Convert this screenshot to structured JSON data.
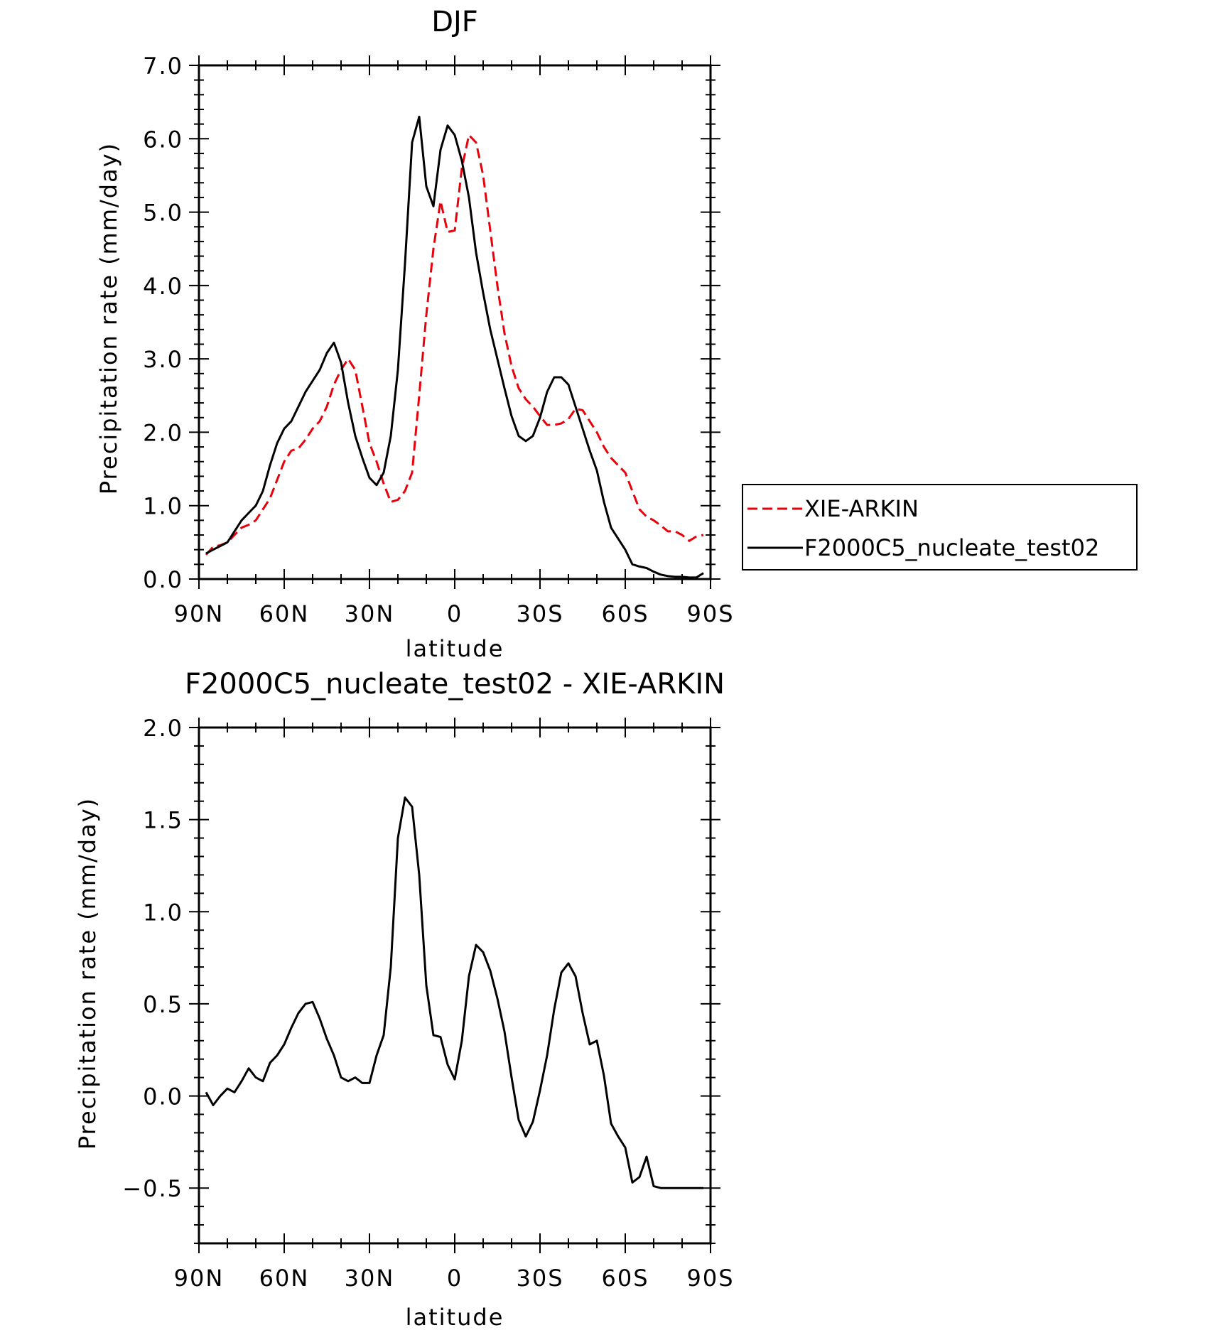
{
  "chart_data": [
    {
      "type": "line",
      "title": "DJF",
      "xlabel": "latitude",
      "ylabel": "Precipitation rate (mm/day)",
      "xlim": [
        90,
        -90
      ],
      "ylim": [
        0,
        7
      ],
      "xticks": [
        {
          "value": 90,
          "label": "90N"
        },
        {
          "value": 60,
          "label": "60N"
        },
        {
          "value": 30,
          "label": "30N"
        },
        {
          "value": 0,
          "label": "0"
        },
        {
          "value": -30,
          "label": "30S"
        },
        {
          "value": -60,
          "label": "60S"
        },
        {
          "value": -90,
          "label": "90S"
        }
      ],
      "yticks": [
        {
          "value": 0,
          "label": "0.0"
        },
        {
          "value": 1,
          "label": "1.0"
        },
        {
          "value": 2,
          "label": "2.0"
        },
        {
          "value": 3,
          "label": "3.0"
        },
        {
          "value": 4,
          "label": "4.0"
        },
        {
          "value": 5,
          "label": "5.0"
        },
        {
          "value": 6,
          "label": "6.0"
        },
        {
          "value": 7,
          "label": "7.0"
        }
      ],
      "legend_position": "right",
      "series": [
        {
          "name": "XIE-ARKIN",
          "color": "#e8000b",
          "dash": "dashed",
          "x": [
            87.5,
            85,
            82.5,
            80,
            77.5,
            75,
            72.5,
            70,
            67.5,
            65,
            62.5,
            60,
            57.5,
            55,
            52.5,
            50,
            47.5,
            45,
            42.5,
            40,
            37.5,
            35,
            32.5,
            30,
            27.5,
            25,
            22.5,
            20,
            17.5,
            15,
            12.5,
            10,
            7.5,
            5,
            2.5,
            0,
            -2.5,
            -5,
            -7.5,
            -10,
            -12.5,
            -15,
            -17.5,
            -20,
            -22.5,
            -25,
            -27.5,
            -30,
            -32.5,
            -35,
            -37.5,
            -40,
            -42.5,
            -45,
            -47.5,
            -50,
            -52.5,
            -55,
            -57.5,
            -60,
            -62.5,
            -65,
            -67.5,
            -70,
            -72.5,
            -75,
            -77.5,
            -80,
            -82.5,
            -85,
            -87.5
          ],
          "values": [
            0.33,
            0.44,
            0.46,
            0.5,
            0.6,
            0.7,
            0.74,
            0.8,
            0.95,
            1.1,
            1.35,
            1.6,
            1.75,
            1.78,
            1.9,
            2.05,
            2.15,
            2.35,
            2.65,
            2.85,
            3.0,
            2.85,
            2.35,
            1.85,
            1.6,
            1.3,
            1.05,
            1.08,
            1.2,
            1.45,
            2.5,
            3.6,
            4.5,
            5.15,
            4.73,
            4.75,
            5.6,
            6.05,
            5.95,
            5.5,
            4.75,
            4.0,
            3.35,
            2.9,
            2.6,
            2.45,
            2.35,
            2.22,
            2.1,
            2.1,
            2.12,
            2.18,
            2.32,
            2.3,
            2.15,
            2.0,
            1.8,
            1.65,
            1.55,
            1.45,
            1.2,
            0.95,
            0.85,
            0.8,
            0.73,
            0.65,
            0.65,
            0.6,
            0.52,
            0.58,
            0.6
          ]
        },
        {
          "name": "F2000C5_nucleate_test02",
          "color": "#000000",
          "dash": "solid",
          "x": [
            87.5,
            85,
            82.5,
            80,
            77.5,
            75,
            72.5,
            70,
            67.5,
            65,
            62.5,
            60,
            57.5,
            55,
            52.5,
            50,
            47.5,
            45,
            42.5,
            40,
            37.5,
            35,
            32.5,
            30,
            27.5,
            25,
            22.5,
            20,
            17.5,
            15,
            12.5,
            10,
            7.5,
            5,
            2.5,
            0,
            -2.5,
            -5,
            -7.5,
            -10,
            -12.5,
            -15,
            -17.5,
            -20,
            -22.5,
            -25,
            -27.5,
            -30,
            -32.5,
            -35,
            -37.5,
            -40,
            -42.5,
            -45,
            -47.5,
            -50,
            -52.5,
            -55,
            -57.5,
            -60,
            -62.5,
            -65,
            -67.5,
            -70,
            -72.5,
            -75,
            -77.5,
            -80,
            -82.5,
            -85,
            -87.5
          ],
          "values": [
            0.35,
            0.4,
            0.45,
            0.5,
            0.65,
            0.8,
            0.9,
            1.0,
            1.2,
            1.55,
            1.85,
            2.05,
            2.15,
            2.35,
            2.55,
            2.7,
            2.85,
            3.08,
            3.22,
            2.95,
            2.4,
            1.95,
            1.65,
            1.38,
            1.28,
            1.45,
            1.95,
            2.85,
            4.3,
            5.95,
            6.3,
            5.35,
            5.08,
            5.85,
            6.18,
            6.05,
            5.7,
            5.2,
            4.45,
            3.9,
            3.4,
            3.0,
            2.6,
            2.22,
            1.95,
            1.88,
            1.95,
            2.2,
            2.55,
            2.75,
            2.75,
            2.65,
            2.35,
            2.05,
            1.75,
            1.48,
            1.05,
            0.7,
            0.55,
            0.4,
            0.2,
            0.17,
            0.15,
            0.1,
            0.06,
            0.04,
            0.03,
            0.03,
            0.02,
            0.02,
            0.08
          ]
        }
      ]
    },
    {
      "type": "line",
      "title": "F2000C5_nucleate_test02 - XIE-ARKIN",
      "xlabel": "latitude",
      "ylabel": "Precipitation rate (mm/day)",
      "xlim": [
        90,
        -90
      ],
      "ylim": [
        -0.8,
        2.0
      ],
      "xticks": [
        {
          "value": 90,
          "label": "90N"
        },
        {
          "value": 60,
          "label": "60N"
        },
        {
          "value": 30,
          "label": "30N"
        },
        {
          "value": 0,
          "label": "0"
        },
        {
          "value": -30,
          "label": "30S"
        },
        {
          "value": -60,
          "label": "60S"
        },
        {
          "value": -90,
          "label": "90S"
        }
      ],
      "yticks": [
        {
          "value": -0.5,
          "label": "−0.5"
        },
        {
          "value": 0,
          "label": "0.0"
        },
        {
          "value": 0.5,
          "label": "0.5"
        },
        {
          "value": 1.0,
          "label": "1.0"
        },
        {
          "value": 1.5,
          "label": "1.5"
        },
        {
          "value": 2.0,
          "label": "2.0"
        }
      ],
      "series": [
        {
          "color": "#000000",
          "dash": "solid",
          "x": [
            87.5,
            85,
            82.5,
            80,
            77.5,
            75,
            72.5,
            70,
            67.5,
            65,
            62.5,
            60,
            57.5,
            55,
            52.5,
            50,
            47.5,
            45,
            42.5,
            40,
            37.5,
            35,
            32.5,
            30,
            27.5,
            25,
            22.5,
            20,
            17.5,
            15,
            12.5,
            10,
            7.5,
            5,
            2.5,
            0,
            -2.5,
            -5,
            -7.5,
            -10,
            -12.5,
            -15,
            -17.5,
            -20,
            -22.5,
            -25,
            -27.5,
            -30,
            -32.5,
            -35,
            -37.5,
            -40,
            -42.5,
            -45,
            -47.5,
            -50,
            -52.5,
            -55,
            -57.5,
            -60,
            -62.5,
            -65,
            -67.5,
            -70,
            -72.5,
            -75,
            -77.5,
            -80,
            -82.5,
            -85,
            -87.5
          ],
          "values": [
            0.02,
            -0.05,
            0.0,
            0.04,
            0.02,
            0.08,
            0.15,
            0.1,
            0.08,
            0.18,
            0.22,
            0.28,
            0.37,
            0.45,
            0.5,
            0.51,
            0.42,
            0.31,
            0.22,
            0.1,
            0.08,
            0.1,
            0.07,
            0.07,
            0.22,
            0.33,
            0.7,
            1.4,
            1.62,
            1.57,
            1.2,
            0.6,
            0.33,
            0.32,
            0.17,
            0.09,
            0.3,
            0.65,
            0.82,
            0.78,
            0.68,
            0.53,
            0.35,
            0.1,
            -0.13,
            -0.22,
            -0.14,
            0.03,
            0.22,
            0.47,
            0.67,
            0.72,
            0.65,
            0.45,
            0.28,
            0.3,
            0.11,
            -0.15,
            -0.22,
            -0.28,
            -0.47,
            -0.44,
            -0.33,
            -0.49,
            -0.5,
            -0.5,
            -0.5,
            -0.5,
            -0.5,
            -0.5,
            -0.5
          ]
        }
      ]
    }
  ]
}
